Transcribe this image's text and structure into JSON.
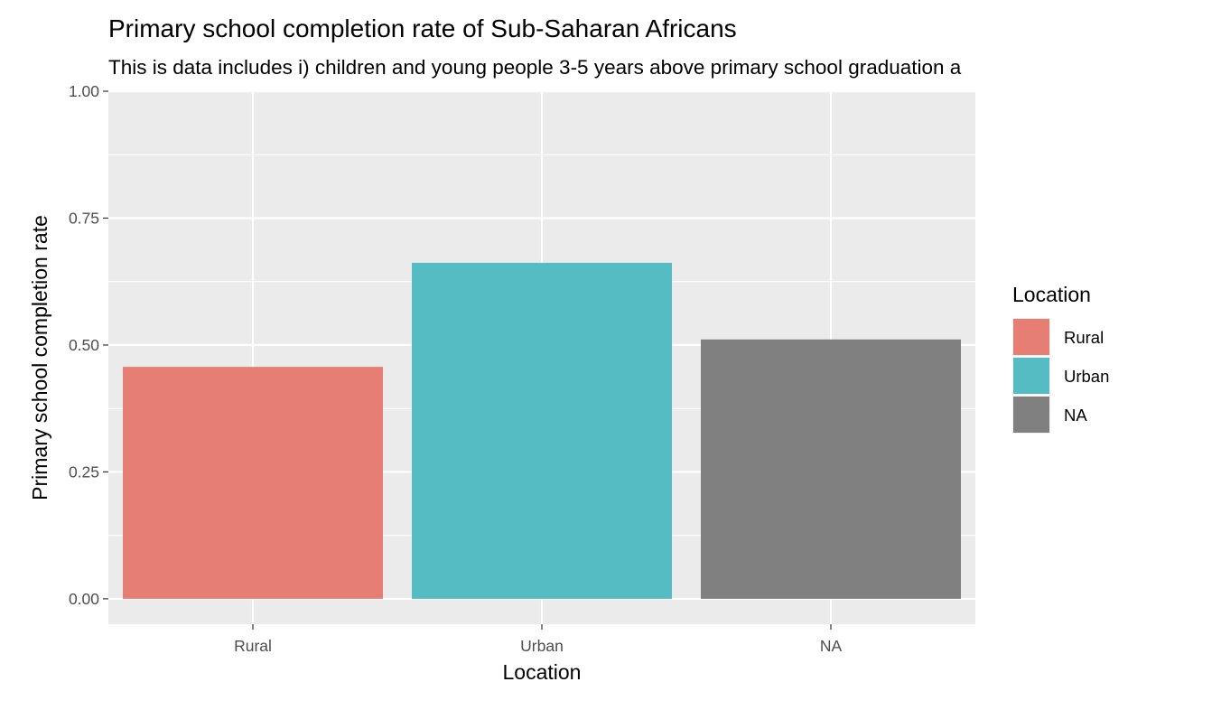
{
  "chart_data": {
    "type": "bar",
    "title": "Primary school completion rate of Sub-Saharan Africans",
    "subtitle": "This is data includes i) children and young people 3-5 years above primary school graduation a",
    "xlabel": "Location",
    "ylabel": "Primary school completion rate",
    "categories": [
      "Rural",
      "Urban",
      "NA"
    ],
    "values": [
      0.457,
      0.662,
      0.511
    ],
    "colors": [
      "#E67E73",
      "#56BCC4",
      "#808080"
    ],
    "ylim": [
      -0.05,
      1.0
    ],
    "yticks": [
      0,
      0.25,
      0.5,
      0.75,
      1.0
    ],
    "ytick_labels": [
      "0.00",
      "0.25",
      "0.50",
      "0.75",
      "1.00"
    ],
    "grid": true,
    "background": "#EBEBEB",
    "legend": {
      "title": "Location",
      "position": "right",
      "items": [
        "Rural",
        "Urban",
        "NA"
      ]
    }
  }
}
